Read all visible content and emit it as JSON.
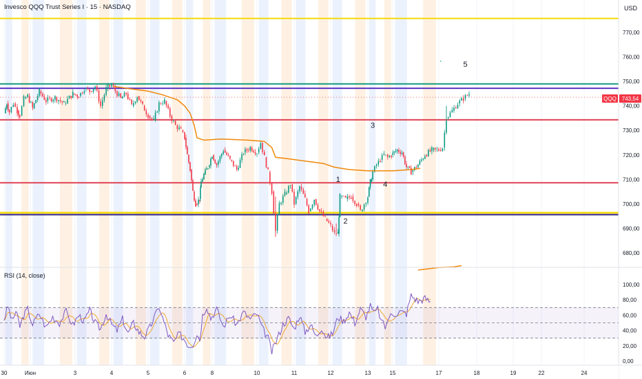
{
  "header": {
    "title": "Invesco QQQ Trust Series I · 15 · NASDAQ",
    "currency": "USD",
    "rsi_label": "RSI (14, close)"
  },
  "price_tag": {
    "ticker": "QQQ",
    "value": "743,54",
    "price": 743.54
  },
  "colors": {
    "up_candle": "#089981",
    "down_candle": "#f23645",
    "vwap": "#f0880a",
    "rsi_line": "#7e57c2",
    "rsi_ma": "#f0a830",
    "session_blue": "#dbe8fb",
    "session_orange": "#fde7d0"
  },
  "chart_data": [
    {
      "type": "candlestick",
      "title": "Invesco QQQ Trust Series I · 15 · NASDAQ",
      "ylim": [
        670,
        778
      ],
      "y_ticks": [
        "770,00",
        "760,00",
        "750,00",
        "740,00",
        "730,00",
        "720,00",
        "710,00",
        "700,00",
        "690,00",
        "680,00"
      ],
      "y_tick_values": [
        770,
        760,
        750,
        740,
        730,
        720,
        710,
        700,
        690,
        680
      ],
      "x_ticks": [
        "30",
        "Июн",
        "3",
        "4",
        "5",
        "6",
        "8",
        "10",
        "11",
        "12",
        "13",
        "15",
        "17",
        "18",
        "19",
        "22",
        "24"
      ],
      "x_tick_days": [
        0,
        1,
        2,
        3,
        4,
        5,
        6,
        7,
        8,
        9,
        10,
        11,
        12,
        13,
        14,
        15,
        16
      ],
      "horizontal_levels": [
        {
          "price": 775.7,
          "color": "#f5d90a",
          "width": 2
        },
        {
          "price": 749.0,
          "color": "#119a7e",
          "width": 2
        },
        {
          "price": 747.2,
          "color": "#5b33c2",
          "width": 2
        },
        {
          "price": 734.3,
          "color": "#e04253",
          "width": 2
        },
        {
          "price": 708.6,
          "color": "#e04253",
          "width": 2
        },
        {
          "price": 696.4,
          "color": "#f5d90a",
          "width": 2.5
        },
        {
          "price": 695.6,
          "color": "#2f1f7a",
          "width": 2
        }
      ],
      "price_path": [
        [
          0.0,
          737
        ],
        [
          0.1,
          741
        ],
        [
          0.2,
          737.5
        ],
        [
          0.35,
          741
        ],
        [
          0.5,
          738
        ],
        [
          0.6,
          736
        ],
        [
          0.75,
          743
        ],
        [
          0.9,
          744
        ],
        [
          1.05,
          739
        ],
        [
          1.2,
          746
        ],
        [
          1.35,
          742
        ],
        [
          1.55,
          743.5
        ],
        [
          1.75,
          741
        ],
        [
          1.95,
          745
        ],
        [
          2.1,
          744
        ],
        [
          2.25,
          747
        ],
        [
          2.4,
          746
        ],
        [
          2.55,
          748
        ],
        [
          2.7,
          740
        ],
        [
          2.85,
          747
        ],
        [
          3.0,
          748.5
        ],
        [
          3.1,
          746
        ],
        [
          3.25,
          743
        ],
        [
          3.4,
          745
        ],
        [
          3.55,
          740
        ],
        [
          3.7,
          744
        ],
        [
          3.85,
          740
        ],
        [
          4.0,
          736
        ],
        [
          4.15,
          734
        ],
        [
          4.3,
          741
        ],
        [
          4.45,
          742
        ],
        [
          4.6,
          736
        ],
        [
          4.75,
          732
        ],
        [
          4.9,
          730
        ],
        [
          5.0,
          727
        ],
        [
          5.1,
          720
        ],
        [
          5.2,
          714
        ],
        [
          5.3,
          705
        ],
        [
          5.4,
          700
        ],
        [
          5.55,
          702
        ],
        [
          5.6,
          709
        ],
        [
          5.7,
          712
        ],
        [
          5.85,
          715
        ],
        [
          6.0,
          720
        ],
        [
          6.1,
          716
        ],
        [
          6.25,
          722
        ],
        [
          6.4,
          718
        ],
        [
          6.55,
          714
        ],
        [
          6.7,
          721
        ],
        [
          6.85,
          723
        ],
        [
          7.0,
          721
        ],
        [
          7.1,
          725
        ],
        [
          7.2,
          719
        ],
        [
          7.3,
          713
        ],
        [
          7.4,
          705
        ],
        [
          7.5,
          689
        ],
        [
          7.6,
          700
        ],
        [
          7.75,
          704
        ],
        [
          7.9,
          708
        ],
        [
          8.0,
          700
        ],
        [
          8.15,
          707
        ],
        [
          8.3,
          702
        ],
        [
          8.4,
          697
        ],
        [
          8.55,
          702
        ],
        [
          8.7,
          697
        ],
        [
          8.85,
          694
        ],
        [
          9.0,
          691
        ],
        [
          9.1,
          688
        ],
        [
          9.2,
          688
        ],
        [
          9.25,
          703
        ],
        [
          9.4,
          702
        ],
        [
          9.55,
          703
        ],
        [
          9.7,
          700
        ],
        [
          9.8,
          697
        ],
        [
          9.9,
          700
        ],
        [
          10.0,
          703
        ],
        [
          10.1,
          709
        ],
        [
          10.2,
          713
        ],
        [
          10.35,
          716
        ],
        [
          10.5,
          718
        ],
        [
          10.65,
          720
        ],
        [
          10.8,
          719
        ],
        [
          10.95,
          720
        ],
        [
          11.1,
          722
        ],
        [
          11.2,
          721
        ],
        [
          11.3,
          715
        ],
        [
          11.4,
          713
        ],
        [
          11.55,
          716
        ],
        [
          11.7,
          720
        ],
        [
          11.85,
          722
        ],
        [
          12.0,
          722
        ],
        [
          12.1,
          723
        ],
        [
          12.2,
          735
        ],
        [
          12.35,
          738
        ],
        [
          12.5,
          741
        ],
        [
          12.65,
          743
        ],
        [
          12.8,
          745
        ]
      ],
      "vwap_path": [
        [
          3.05,
          748
        ],
        [
          3.5,
          747
        ],
        [
          4.0,
          746
        ],
        [
          4.4,
          744.5
        ],
        [
          4.8,
          742.5
        ],
        [
          5.0,
          740
        ],
        [
          5.2,
          737
        ],
        [
          5.35,
          732
        ],
        [
          5.45,
          727
        ],
        [
          5.7,
          726
        ],
        [
          6.2,
          726.5
        ],
        [
          6.8,
          726
        ],
        [
          7.2,
          725.5
        ],
        [
          7.4,
          723
        ],
        [
          7.5,
          719
        ],
        [
          7.8,
          718.5
        ],
        [
          8.3,
          717.5
        ],
        [
          8.8,
          716.5
        ],
        [
          9.1,
          715
        ],
        [
          9.5,
          714
        ],
        [
          10.0,
          713.5
        ],
        [
          10.5,
          713.5
        ],
        [
          11.0,
          713.5
        ],
        [
          11.4,
          714
        ],
        [
          11.6,
          714.5
        ]
      ],
      "vwap_path_2": [
        [
          11.55,
          673
        ],
        [
          12.0,
          674
        ],
        [
          12.4,
          674.3
        ],
        [
          12.6,
          674.8
        ]
      ],
      "annotations": [
        {
          "text": "1",
          "day": 9.2,
          "price": 709
        },
        {
          "text": "2",
          "day": 9.4,
          "price": 692
        },
        {
          "text": "3",
          "day": 10.2,
          "price": 731
        },
        {
          "text": "4",
          "day": 10.7,
          "price": 707
        },
        {
          "text": "5",
          "day": 12.7,
          "price": 756
        }
      ]
    },
    {
      "type": "line",
      "title": "RSI (14, close)",
      "ylim": [
        0,
        110
      ],
      "y_ticks": [
        "100,00",
        "80,00",
        "60,00",
        "40,00",
        "20,00",
        "0,00"
      ],
      "y_tick_values": [
        100,
        80,
        60,
        40,
        20,
        0
      ],
      "band": [
        30,
        70
      ],
      "midline": 50,
      "series": [
        {
          "values": [
            [
              0.0,
              55
            ],
            [
              0.15,
              72
            ],
            [
              0.3,
              52
            ],
            [
              0.45,
              65
            ],
            [
              0.6,
              45
            ],
            [
              0.75,
              60
            ],
            [
              0.9,
              68
            ],
            [
              1.05,
              48
            ],
            [
              1.2,
              62
            ],
            [
              1.35,
              44
            ],
            [
              1.5,
              58
            ],
            [
              1.65,
              50
            ],
            [
              1.8,
              65
            ],
            [
              1.95,
              47
            ],
            [
              2.1,
              60
            ],
            [
              2.25,
              52
            ],
            [
              2.4,
              66
            ],
            [
              2.55,
              50
            ],
            [
              2.7,
              42
            ],
            [
              2.85,
              62
            ],
            [
              3.0,
              48
            ],
            [
              3.15,
              40
            ],
            [
              3.3,
              55
            ],
            [
              3.45,
              36
            ],
            [
              3.6,
              50
            ],
            [
              3.75,
              38
            ],
            [
              3.9,
              32
            ],
            [
              4.05,
              44
            ],
            [
              4.2,
              60
            ],
            [
              4.3,
              72
            ],
            [
              4.4,
              56
            ],
            [
              4.55,
              34
            ],
            [
              4.7,
              24
            ],
            [
              4.85,
              36
            ],
            [
              5.0,
              28
            ],
            [
              5.15,
              20
            ],
            [
              5.3,
              22
            ],
            [
              5.45,
              36
            ],
            [
              5.55,
              28
            ],
            [
              5.65,
              60
            ],
            [
              5.8,
              72
            ],
            [
              5.95,
              56
            ],
            [
              6.1,
              68
            ],
            [
              6.25,
              45
            ],
            [
              6.4,
              60
            ],
            [
              6.55,
              48
            ],
            [
              6.7,
              64
            ],
            [
              6.85,
              55
            ],
            [
              7.0,
              62
            ],
            [
              7.15,
              42
            ],
            [
              7.3,
              30
            ],
            [
              7.4,
              12
            ],
            [
              7.55,
              30
            ],
            [
              7.7,
              48
            ],
            [
              7.85,
              56
            ],
            [
              8.0,
              42
            ],
            [
              8.15,
              60
            ],
            [
              8.3,
              38
            ],
            [
              8.45,
              48
            ],
            [
              8.6,
              32
            ],
            [
              8.75,
              44
            ],
            [
              8.9,
              30
            ],
            [
              9.05,
              36
            ],
            [
              9.2,
              58
            ],
            [
              9.35,
              52
            ],
            [
              9.5,
              64
            ],
            [
              9.65,
              50
            ],
            [
              9.8,
              68
            ],
            [
              9.95,
              58
            ],
            [
              10.1,
              72
            ],
            [
              10.25,
              62
            ],
            [
              10.4,
              68
            ],
            [
              10.55,
              52
            ],
            [
              10.7,
              44
            ],
            [
              10.85,
              58
            ],
            [
              11.0,
              60
            ],
            [
              11.15,
              65
            ],
            [
              11.3,
              62
            ],
            [
              11.4,
              86
            ],
            [
              11.55,
              78
            ],
            [
              11.7,
              82
            ],
            [
              11.85,
              76
            ]
          ]
        }
      ]
    }
  ]
}
